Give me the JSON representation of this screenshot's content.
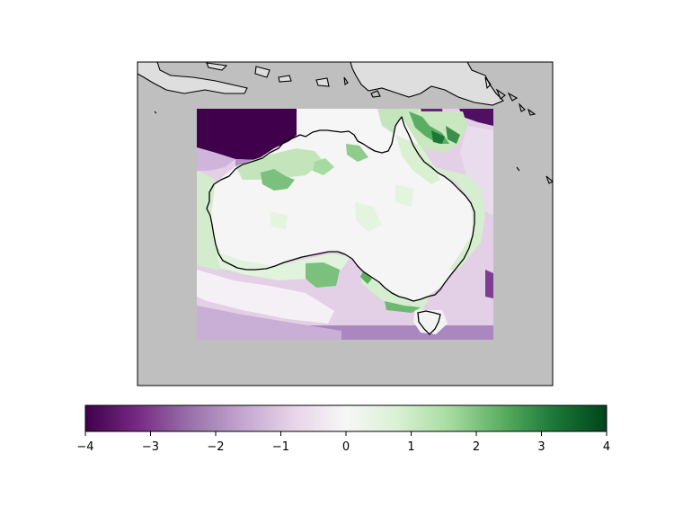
{
  "map": {
    "ocean_color": "#bfbfbf",
    "other_land_color": "#dedede",
    "coastline_color": "#000000"
  },
  "colorbar": {
    "colormap": "PRGn",
    "range": [
      -4,
      4
    ],
    "ticks": [
      "−4",
      "−3",
      "−2",
      "−1",
      "0",
      "1",
      "2",
      "3",
      "4"
    ],
    "tick_values": [
      -4,
      -3,
      -2,
      -1,
      0,
      1,
      2,
      3,
      4
    ],
    "stops": [
      "#40004b",
      "#762a83",
      "#9970ab",
      "#c2a5cf",
      "#e7d4e8",
      "#f7f7f7",
      "#d9f0d3",
      "#a6dba0",
      "#5aae61",
      "#1b7837",
      "#00441b"
    ]
  }
}
